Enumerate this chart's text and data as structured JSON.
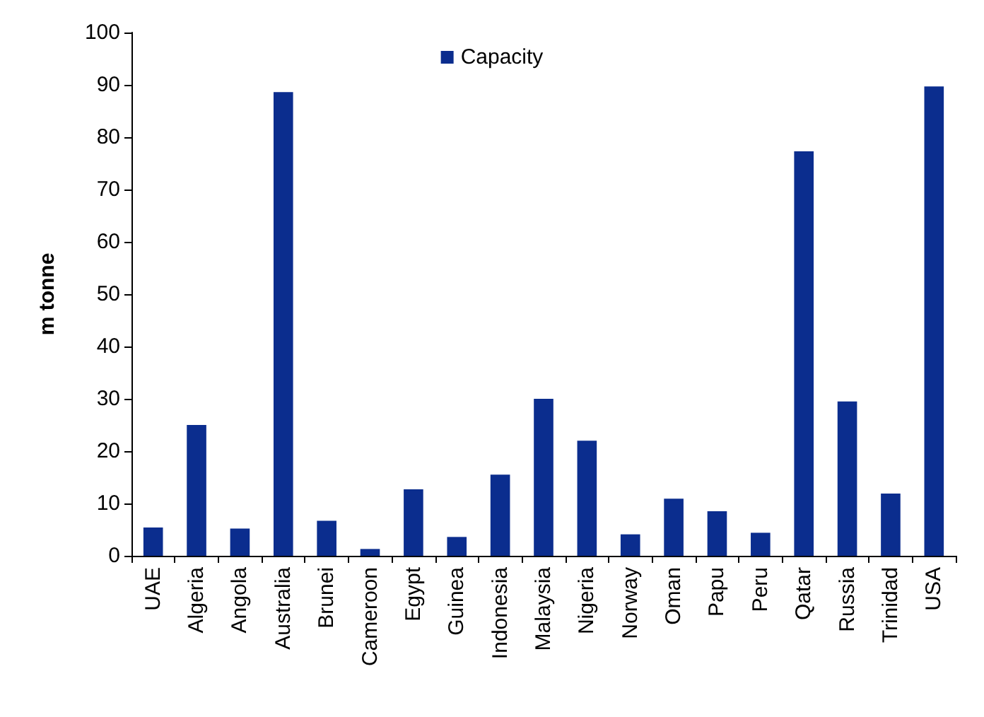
{
  "chart_data": {
    "type": "bar",
    "ylabel": "m tonne",
    "categories": [
      "UAE",
      "Algeria",
      "Angola",
      "Australia",
      "Brunei",
      "Cameroon",
      "Egypt",
      "Guinea",
      "Indonesia",
      "Malaysia",
      "Nigeria",
      "Norway",
      "Oman",
      "Papu",
      "Peru",
      "Qatar",
      "Russia",
      "Trinidad",
      "USA"
    ],
    "series": [
      {
        "name": "Capacity",
        "color": "#0b2d8e",
        "values": [
          5.4,
          25,
          5.2,
          88.6,
          6.7,
          1.3,
          12.7,
          3.6,
          15.5,
          30,
          22,
          4.1,
          10.9,
          8.5,
          4.4,
          77.3,
          29.5,
          11.9,
          89.7
        ]
      }
    ],
    "ylim": [
      0,
      100
    ],
    "yticks": [
      0,
      10,
      20,
      30,
      40,
      50,
      60,
      70,
      80,
      90,
      100
    ],
    "grid": false,
    "legend": "top"
  }
}
